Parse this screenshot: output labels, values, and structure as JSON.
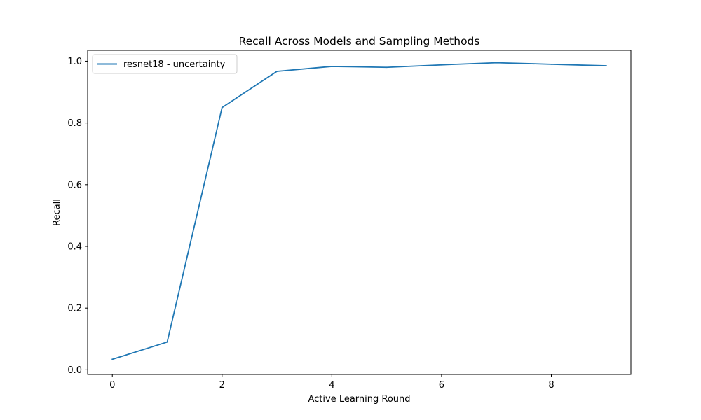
{
  "chart_data": {
    "type": "line",
    "title": "Recall Across Models and Sampling Methods",
    "xlabel": "Active Learning Round",
    "ylabel": "Recall",
    "xlim": [
      -0.45,
      9.45
    ],
    "ylim": [
      -0.015,
      1.035
    ],
    "xticks": [
      0,
      2,
      4,
      6,
      8
    ],
    "xtick_labels": [
      "0",
      "2",
      "4",
      "6",
      "8"
    ],
    "yticks": [
      0.0,
      0.2,
      0.4,
      0.6,
      0.8,
      1.0
    ],
    "ytick_labels": [
      "0.0",
      "0.2",
      "0.4",
      "0.6",
      "0.8",
      "1.0"
    ],
    "grid": false,
    "legend_position": "upper-left",
    "series": [
      {
        "name": "resnet18 - uncertainty",
        "color": "#1f77b4",
        "x": [
          0,
          1,
          2,
          3,
          4,
          5,
          6,
          7,
          8,
          9
        ],
        "y": [
          0.034,
          0.09,
          0.85,
          0.967,
          0.983,
          0.98,
          0.988,
          0.995,
          0.99,
          0.985
        ]
      }
    ]
  }
}
